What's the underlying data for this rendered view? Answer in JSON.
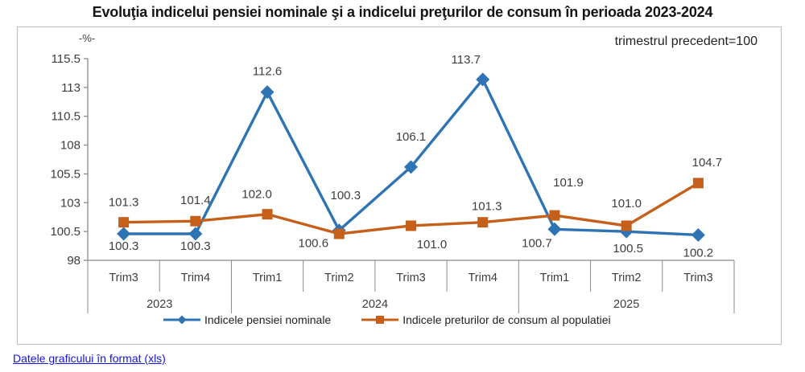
{
  "title": "Evoluţia indicelui pensiei nominale şi a indicelui preţurilor de consum în perioada 2023-2024",
  "base_note": "trimestrul precedent=100",
  "footer_link": "Datele graficului în format (xls)",
  "chart_data": {
    "type": "line",
    "title": "Evoluţia indicelui pensiei nominale şi a indicelui preţurilor de consum în perioada 2023-2024",
    "xlabel": "",
    "ylabel": "-%-",
    "categories": [
      "Trim3",
      "Trim4",
      "Trim1",
      "Trim2",
      "Trim3",
      "Trim4",
      "Trim1",
      "Trim2",
      "Trim3"
    ],
    "year_groups": [
      {
        "label": "2023",
        "span": 2
      },
      {
        "label": "2024",
        "span": 4
      },
      {
        "label": "2025",
        "span": 3
      }
    ],
    "ylim": [
      98,
      115.5
    ],
    "yticks": [
      98,
      100.5,
      103,
      105.5,
      108,
      110.5,
      113,
      115.5
    ],
    "grid": false,
    "legend_position": "bottom",
    "axis_color": "#8a8a8a",
    "text_color": "#3d3d3d",
    "series": [
      {
        "name": "Indicele pensiei nominale",
        "color": "#2E74B5",
        "marker": "diamond",
        "values": [
          100.3,
          100.3,
          112.6,
          100.6,
          106.1,
          113.7,
          100.7,
          100.5,
          100.2
        ],
        "label_offsets": [
          [
            0,
            15
          ],
          [
            0,
            15
          ],
          [
            0,
            -26
          ],
          [
            -32,
            16
          ],
          [
            0,
            -38
          ],
          [
            -21,
            -25
          ],
          [
            -22,
            17
          ],
          [
            2,
            21
          ],
          [
            0,
            22
          ]
        ]
      },
      {
        "name": "Indicele preturilor de consum al populatiei",
        "color": "#C55F1A",
        "marker": "square",
        "values": [
          101.3,
          101.4,
          102.0,
          100.3,
          101.0,
          101.3,
          101.9,
          101.0,
          104.7
        ],
        "label_offsets": [
          [
            0,
            -25
          ],
          [
            0,
            -26
          ],
          [
            -13,
            -25
          ],
          [
            8,
            -48
          ],
          [
            26,
            23
          ],
          [
            5,
            -20
          ],
          [
            17,
            -41
          ],
          [
            0,
            -28
          ],
          [
            11,
            -26
          ]
        ]
      }
    ]
  }
}
